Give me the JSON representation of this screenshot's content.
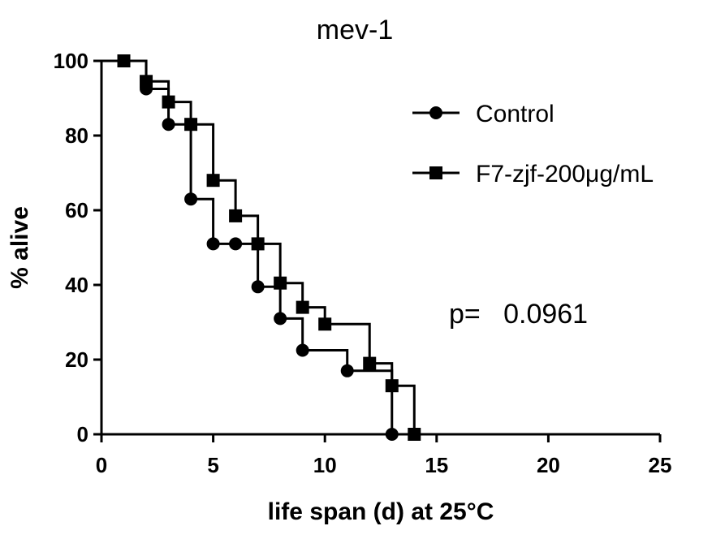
{
  "chart_data": {
    "type": "line",
    "step": true,
    "title": "mev-1",
    "xlabel": "life span (d) at 25°C",
    "ylabel": "% alive",
    "xlim": [
      0,
      25
    ],
    "ylim": [
      0,
      100
    ],
    "xticks": [
      "0",
      "5",
      "10",
      "15",
      "20",
      "25"
    ],
    "yticks": [
      "0",
      "20",
      "40",
      "60",
      "80",
      "100"
    ],
    "grid": false,
    "legend_position": "top-right",
    "annotation": "p=   0.0961",
    "series": [
      {
        "name": "Control",
        "marker": "circle",
        "color": "#000000",
        "x": [
          1,
          2,
          3,
          4,
          5,
          6,
          7,
          8,
          9,
          11,
          13
        ],
        "y": [
          100,
          92.5,
          83,
          63,
          51,
          51,
          39.5,
          31,
          22.5,
          17,
          0
        ]
      },
      {
        "name": "F7-zjf-200μg/mL",
        "marker": "square",
        "color": "#000000",
        "x": [
          1,
          2,
          3,
          4,
          5,
          6,
          7,
          8,
          9,
          10,
          12,
          13,
          14
        ],
        "y": [
          100,
          94.5,
          89,
          83,
          68,
          58.5,
          51,
          40.5,
          34,
          29.5,
          19,
          13,
          0
        ]
      }
    ]
  }
}
